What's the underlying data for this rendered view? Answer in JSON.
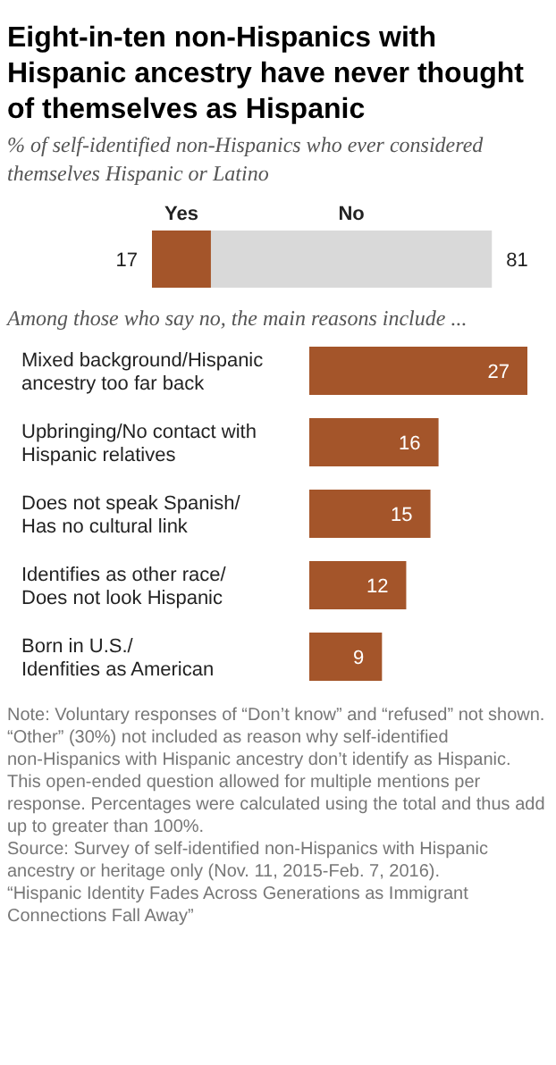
{
  "chart_data": [
    {
      "type": "bar",
      "title": "Eight-in-ten non-Hispanics with Hispanic ancestry have never thought of themselves as Hispanic",
      "subtitle": "% of self-identified non-Hispanics who ever considered themselves Hispanic or Latino",
      "orientation": "horizontal",
      "stacked": true,
      "data_labels": true,
      "categories": [
        null
      ],
      "series": [
        {
          "name": "Yes",
          "color": "#a4552a",
          "values": [
            17
          ]
        },
        {
          "name": "No",
          "color": "#d9d9d9",
          "values": [
            81
          ]
        }
      ]
    },
    {
      "type": "bar",
      "subtitle": "Among those who say no, the main reasons include ...",
      "orientation": "horizontal",
      "data_labels": true,
      "color": "#a4552a",
      "categories": [
        "Mixed background/Hispanic\nancestry too far back",
        "Upbringing/No contact with\nHispanic relatives",
        "Does not speak Spanish/\nHas no cultural link",
        "Identifies as other race/\nDoes not look Hispanic",
        "Born in U.S./\nIdenfities as American"
      ],
      "values": [
        27,
        16,
        15,
        12,
        9
      ],
      "annotations": [
        "Note: Voluntary responses of “Don’t know” and “refused” not shown. “Other” (30%) not included as reason why self-identified non-Hispanics with Hispanic ancestry don’t identify as Hispanic. This open-ended question allowed for multiple mentions per response. Percentages were calculated using the total and thus add up to greater than 100%.",
        "Source: Survey of self-identified non-Hispanics with Hispanic ancestry or heritage only (Nov. 11, 2015-Feb. 7, 2016).",
        "“Hispanic Identity Fades Across Generations as Immigrant Connections Fall Away”"
      ]
    }
  ]
}
